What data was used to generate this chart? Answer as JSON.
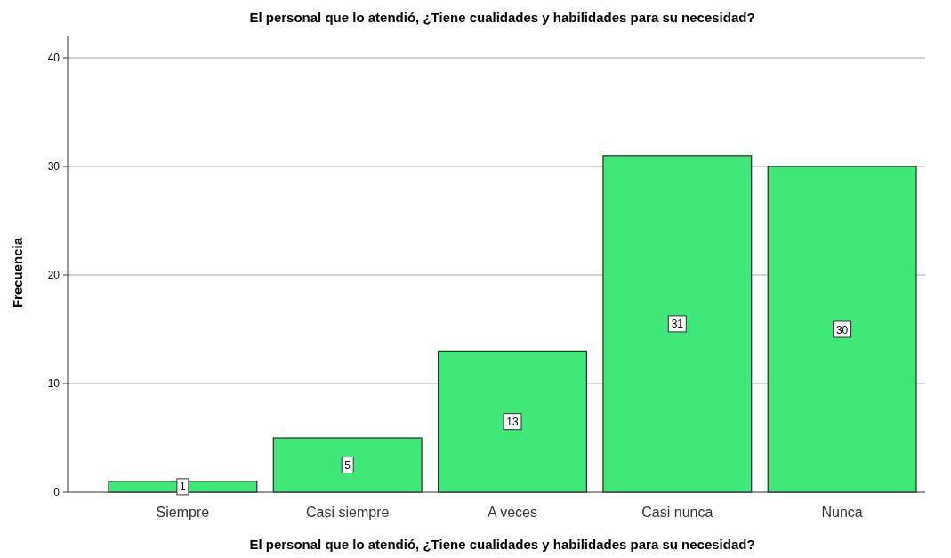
{
  "chart_data": {
    "type": "bar",
    "title": "El personal que lo atendió, ¿Tiene cualidades y habilidades para su necesidad?",
    "xlabel": "El personal que lo atendió, ¿Tiene cualidades y habilidades para su necesidad?",
    "ylabel": "Frecuencia",
    "categories": [
      "Siempre",
      "Casi siempre",
      "A veces",
      "Casi nunca",
      "Nunca"
    ],
    "values": [
      1,
      5,
      13,
      31,
      30
    ],
    "color": "#40e87a",
    "ylim": [
      0,
      40
    ],
    "yticks": [
      0,
      10,
      20,
      30,
      40
    ],
    "grid": "y",
    "data_labels": true
  }
}
